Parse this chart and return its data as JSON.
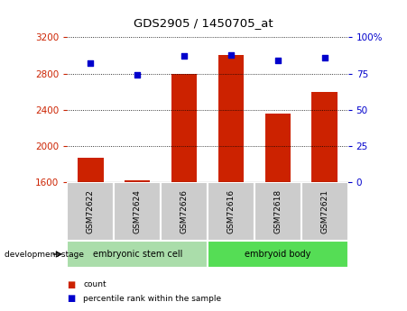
{
  "title": "GDS2905 / 1450705_at",
  "samples": [
    "GSM72622",
    "GSM72624",
    "GSM72626",
    "GSM72616",
    "GSM72618",
    "GSM72621"
  ],
  "counts": [
    1870,
    1618,
    2800,
    3000,
    2360,
    2600
  ],
  "percentiles": [
    82,
    74,
    87,
    88,
    84,
    86
  ],
  "ylim_left": [
    1600,
    3200
  ],
  "ylim_right": [
    0,
    100
  ],
  "yticks_left": [
    1600,
    2000,
    2400,
    2800,
    3200
  ],
  "yticks_right": [
    0,
    25,
    50,
    75,
    100
  ],
  "bar_color": "#cc2200",
  "dot_color": "#0000cc",
  "groups": [
    {
      "label": "embryonic stem cell",
      "span": [
        0,
        3
      ],
      "color": "#aaddaa"
    },
    {
      "label": "embryoid body",
      "span": [
        3,
        6
      ],
      "color": "#55dd55"
    }
  ],
  "sample_box_color": "#cccccc",
  "dev_stage_label": "development stage",
  "legend_count_label": "count",
  "legend_pct_label": "percentile rank within the sample",
  "left_tick_color": "#cc2200",
  "right_tick_color": "#0000cc"
}
